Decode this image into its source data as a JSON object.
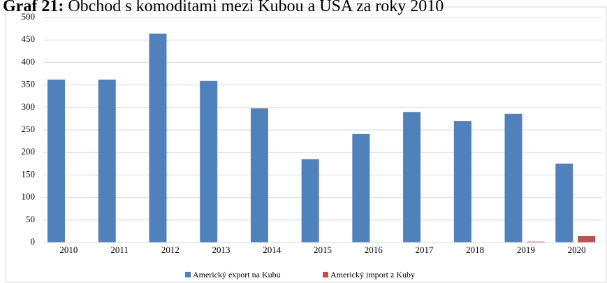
{
  "chart_data": {
    "type": "bar",
    "title_label": "Graf 21:",
    "title": "Obchod s komoditami mezi Kubou a USA za roky 2010",
    "categories": [
      "2010",
      "2011",
      "2012",
      "2013",
      "2014",
      "2015",
      "2016",
      "2017",
      "2018",
      "2019",
      "2020"
    ],
    "series": [
      {
        "name": "Americký export na Kubu",
        "color": "#4f81bd",
        "values": [
          362,
          362,
          464,
          359,
          298,
          185,
          241,
          290,
          270,
          286,
          175
        ]
      },
      {
        "name": "Americký import z Kuby",
        "color": "#c0504d",
        "values": [
          0.3,
          0.3,
          0.3,
          0.3,
          0.3,
          0.3,
          0.3,
          0.3,
          0.3,
          2,
          14
        ]
      }
    ],
    "ylim": [
      0,
      500
    ],
    "yticks": [
      0,
      50,
      100,
      150,
      200,
      250,
      300,
      350,
      400,
      450,
      500
    ],
    "grid": true,
    "legend": "bottom"
  }
}
